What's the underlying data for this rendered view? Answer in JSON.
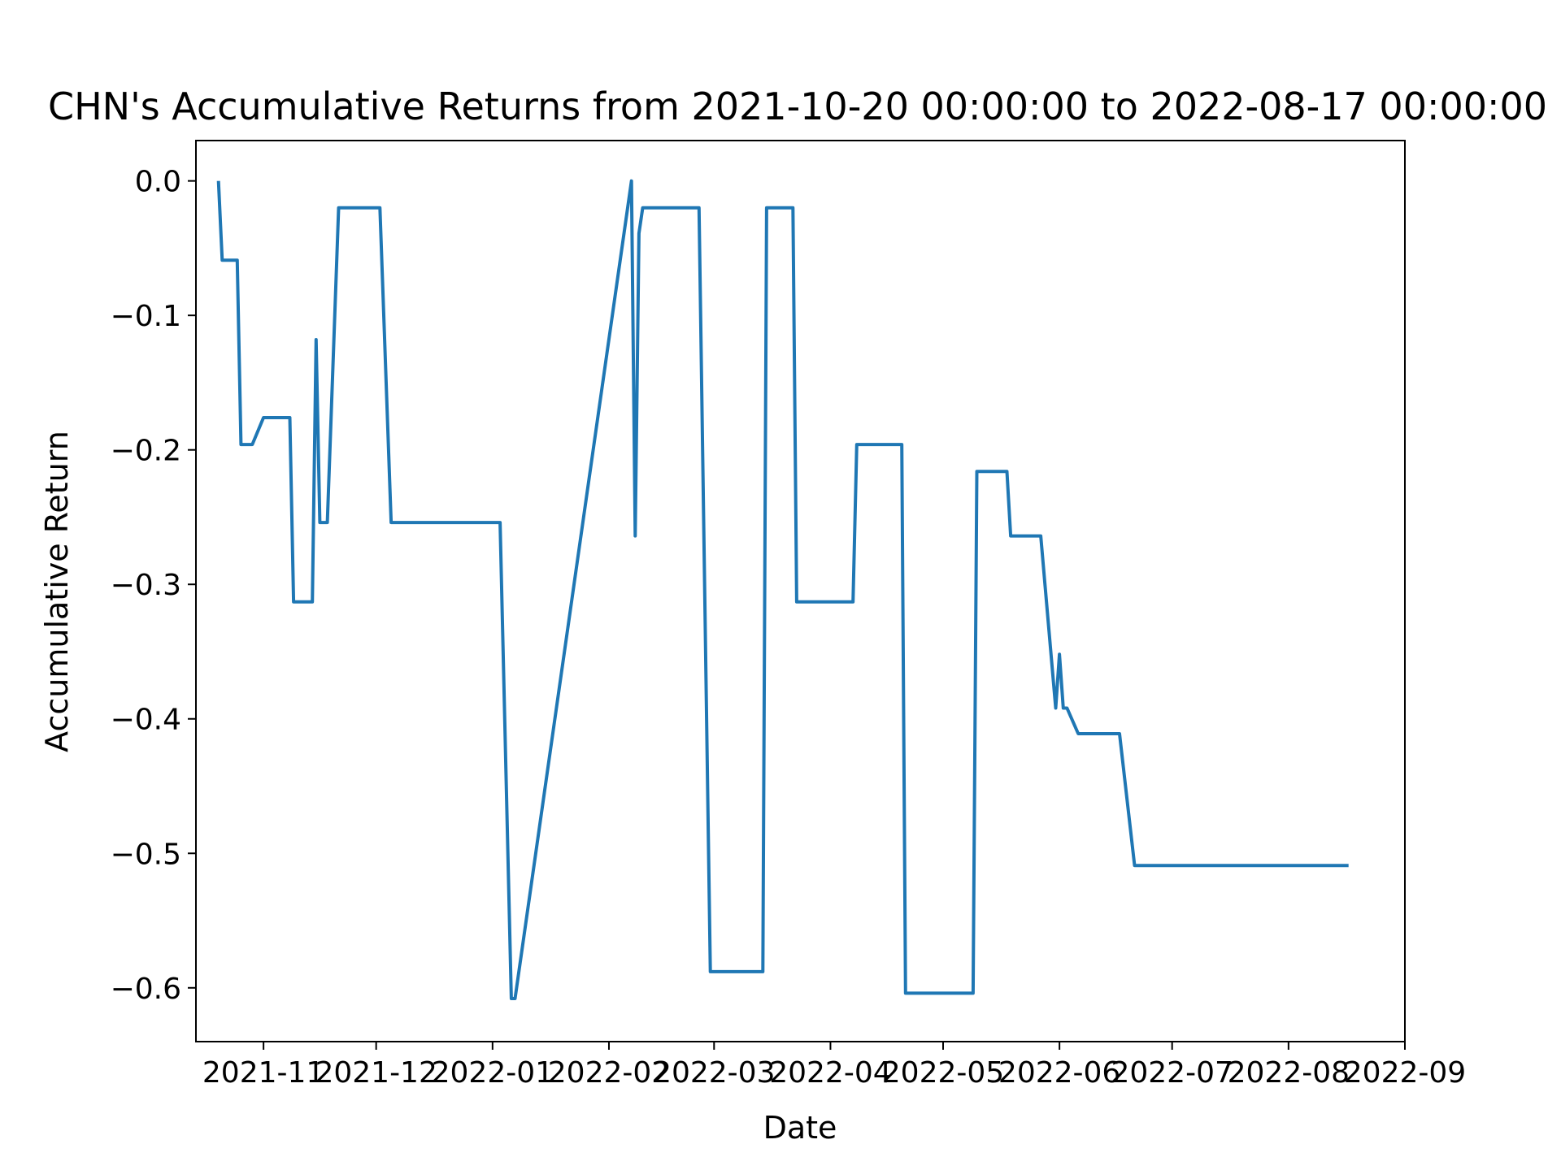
{
  "chart_data": {
    "type": "line",
    "title": "CHN's Accumulative Returns from 2021-10-20 00:00:00 to 2022-08-17 00:00:00",
    "xlabel": "Date",
    "ylabel": "Accumulative Return",
    "x_range": [
      "2021-10-14",
      "2022-09-01"
    ],
    "ylim": [
      -0.64,
      0.03
    ],
    "x_ticks": [
      "2021-11-01",
      "2021-12-01",
      "2022-01-01",
      "2022-02-01",
      "2022-03-01",
      "2022-04-01",
      "2022-05-01",
      "2022-06-01",
      "2022-07-01",
      "2022-08-01",
      "2022-09-01"
    ],
    "x_tick_labels": [
      "2021-11",
      "2021-12",
      "2022-01",
      "2022-02",
      "2022-03",
      "2022-04",
      "2022-05",
      "2022-06",
      "2022-07",
      "2022-08",
      "2022-09"
    ],
    "y_ticks": [
      0.0,
      -0.1,
      -0.2,
      -0.3,
      -0.4,
      -0.5,
      -0.6
    ],
    "y_tick_labels": [
      "0.0",
      "−0.1",
      "−0.2",
      "−0.3",
      "−0.4",
      "−0.5",
      "−0.6"
    ],
    "grid": false,
    "series": [
      {
        "color": "#1f77b4",
        "x": [
          "2021-10-20",
          "2021-10-21",
          "2021-10-25",
          "2021-10-26",
          "2021-10-29",
          "2021-11-01",
          "2021-11-08",
          "2021-11-09",
          "2021-11-14",
          "2021-11-15",
          "2021-11-16",
          "2021-11-18",
          "2021-11-21",
          "2021-11-22",
          "2021-12-02",
          "2021-12-05",
          "2022-01-01",
          "2022-01-03",
          "2022-01-06",
          "2022-01-07",
          "2022-02-07",
          "2022-02-08",
          "2022-02-09",
          "2022-02-10",
          "2022-02-25",
          "2022-02-28",
          "2022-03-14",
          "2022-03-15",
          "2022-03-22",
          "2022-03-23",
          "2022-04-07",
          "2022-04-08",
          "2022-04-20",
          "2022-04-21",
          "2022-05-09",
          "2022-05-10",
          "2022-05-18",
          "2022-05-19",
          "2022-05-27",
          "2022-05-31",
          "2022-06-01",
          "2022-06-02",
          "2022-06-03",
          "2022-06-06",
          "2022-06-17",
          "2022-06-21",
          "2022-08-17"
        ],
        "y": [
          0.0,
          -0.059,
          -0.059,
          -0.196,
          -0.196,
          -0.176,
          -0.176,
          -0.313,
          -0.313,
          -0.118,
          -0.254,
          -0.254,
          -0.02,
          -0.02,
          -0.02,
          -0.254,
          -0.254,
          -0.254,
          -0.608,
          -0.608,
          0.0,
          -0.264,
          -0.039,
          -0.02,
          -0.02,
          -0.588,
          -0.588,
          -0.02,
          -0.02,
          -0.313,
          -0.313,
          -0.196,
          -0.196,
          -0.604,
          -0.604,
          -0.216,
          -0.216,
          -0.264,
          -0.264,
          -0.392,
          -0.352,
          -0.392,
          -0.392,
          -0.411,
          -0.411,
          -0.509,
          -0.509
        ]
      }
    ]
  }
}
